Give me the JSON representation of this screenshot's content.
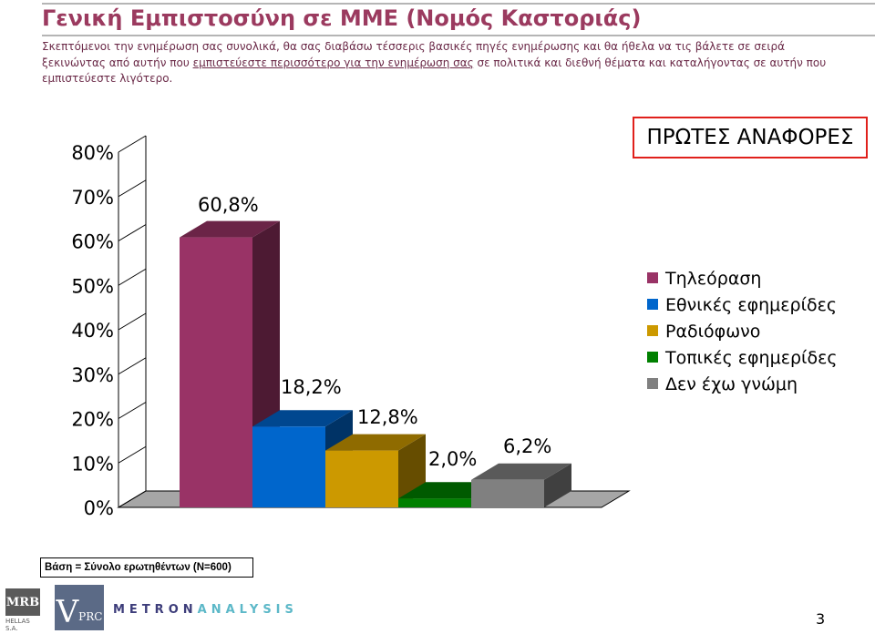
{
  "page": {
    "title": "Γενική Εμπιστοσύνη σε ΜΜΕ (Νομός Καστοριάς)",
    "subtitle_part1": "Σκεπτόμενοι την ενημέρωση σας συνολικά, θα σας διαβάσω τέσσερις βασικές πηγές ενημέρωσης και θα ήθελα να τις βάλετε σε σειρά ξεκινώντας από αυτήν που ",
    "subtitle_underlined": "εμπιστεύεστε περισσότερο για την ενημέρωση σας",
    "subtitle_part2": " σε πολιτικά και διεθνή θέματα και καταλήγοντας σε αυτήν που εμπιστεύεστε λιγότερο.",
    "badge": "ΠΡΩΤΕΣ ΑΝΑΦΟΡΕΣ",
    "base_note": "Βάση = Σύνολο ερωτηθέντων (N=600)",
    "page_number": "3"
  },
  "logos": {
    "mrb": "MRB",
    "mrb_sub": "HELLAS S.A.",
    "vprc_v": "V",
    "vprc_rest": "PRC",
    "metron": "METRON",
    "analysis": "ANALYSIS"
  },
  "chart_data": {
    "type": "bar",
    "title": "",
    "xlabel": "",
    "ylabel": "",
    "ylim": [
      0,
      80
    ],
    "yticks": [
      "0%",
      "10%",
      "20%",
      "30%",
      "40%",
      "50%",
      "60%",
      "70%",
      "80%"
    ],
    "categories": [
      "Τηλεόραση",
      "Εθνικές εφημερίδες",
      "Ραδιόφωνο",
      "Τοπικές εφημερίδες",
      "Δεν έχω γνώμη"
    ],
    "values": [
      60.8,
      18.2,
      12.8,
      2.0,
      6.2
    ],
    "data_labels": [
      "60,8%",
      "18,2%",
      "12,8%",
      "2,0%",
      "6,2%"
    ],
    "colors": [
      "#993366",
      "#0066cc",
      "#cc9900",
      "#008000",
      "#808080"
    ],
    "grid": false,
    "legend_position": "right",
    "style": "3d"
  }
}
